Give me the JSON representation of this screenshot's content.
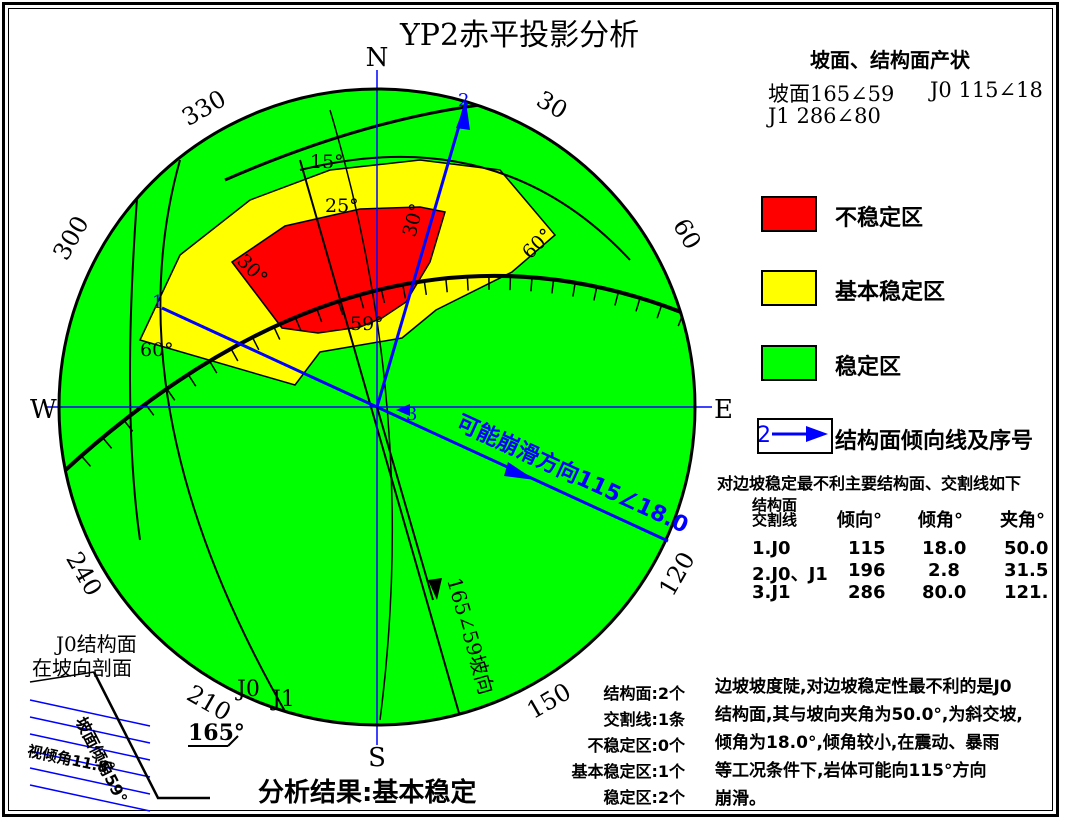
{
  "title": "YP2赤平投影分析",
  "compass": {
    "n": "N",
    "s": "S",
    "e": "E",
    "w": "W"
  },
  "ring_labels": [
    "30",
    "60",
    "120",
    "150",
    "210",
    "240",
    "300",
    "330"
  ],
  "zone_labels": {
    "d15": "15°",
    "d25": "25°",
    "d30a": "30°",
    "d30b": "30°",
    "d60a": "60°",
    "d60b": "60°",
    "d59": "59°"
  },
  "plane_labels": {
    "j0": "J0",
    "j1": "J1",
    "n1": "1",
    "n2": "2",
    "n3": "3"
  },
  "slide_direction": "可能崩滑方向115∠18.0",
  "slope_direction": "165∠59坡向",
  "header": {
    "title": "坡面、结构面产状",
    "line1_a": "坡面165∠59",
    "line1_b": "J0 115∠18",
    "line2": "J1 286∠80"
  },
  "legend": [
    {
      "label": "不稳定区",
      "color": "#ff0000"
    },
    {
      "label": "基本稳定区",
      "color": "#ffff00"
    },
    {
      "label": "稳定区",
      "color": "#00ff00"
    }
  ],
  "legend_line": {
    "num": "2",
    "label": "结构面倾向线及序号"
  },
  "table": {
    "title": "对边坡稳定最不利主要结构面、交割线如下",
    "head_a": "结构面",
    "head_b": "交割线",
    "cols": [
      "倾向°",
      "倾角°",
      "夹角°"
    ],
    "rows": [
      {
        "name": "1.J0",
        "dir": "115",
        "dip": "18.0",
        "ang": "50.0"
      },
      {
        "name": "2.J0、J1",
        "dir": "196",
        "dip": "2.8",
        "ang": "31.5"
      },
      {
        "name": "3.J1",
        "dir": "286",
        "dip": "80.0",
        "ang": "121."
      }
    ]
  },
  "summary": [
    "结构面:2个",
    "交割线:1条",
    "不稳定区:0个",
    "基本稳定区:1个",
    "稳定区:2个"
  ],
  "conclusion": [
    "边坡坡度陡,对边坡稳定性最不利的是J0",
    "结构面,其与坡向夹角为50.0°,为斜交坡,",
    "倾角为18.0°,倾角较小,在震动、暴雨",
    "等工况条件下,岩体可能向115°方向",
    "崩滑。"
  ],
  "result": "分析结果:基本稳定",
  "section": {
    "title_a": "J0结构面",
    "title_b": "在坡向剖面",
    "slope_label": "坡面倾角59°",
    "apparent_label": "视倾角11.8°",
    "azimuth": "165°"
  }
}
